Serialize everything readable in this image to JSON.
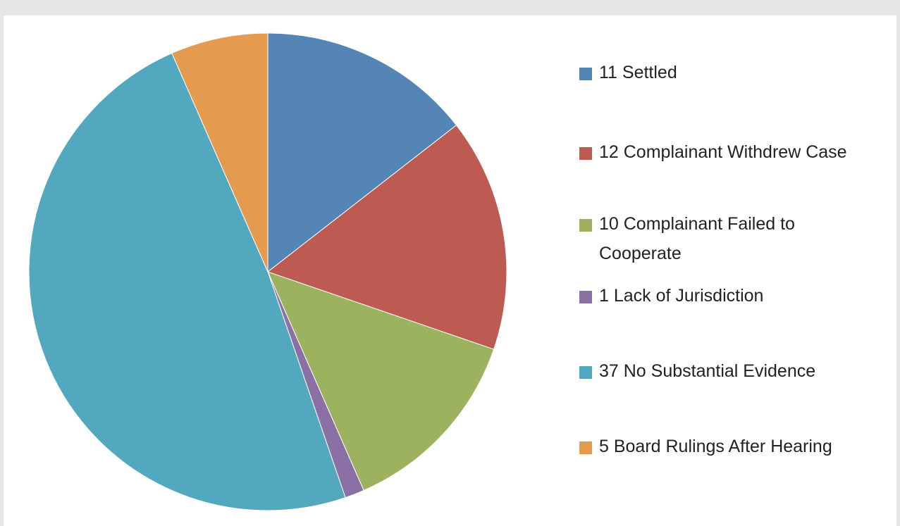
{
  "chart_data": {
    "type": "pie",
    "categories": [
      "11 Settled",
      "12 Complainant Withdrew Case",
      "10 Complainant Failed to Cooperate",
      "1 Lack of Jurisdiction",
      "37 No Substantial Evidence",
      "5 Board Rulings After Hearing"
    ],
    "values": [
      11,
      12,
      10,
      1,
      37,
      5
    ],
    "colors": [
      "#5585b5",
      "#bd5b52",
      "#9db25e",
      "#8a70a4",
      "#52a8bf",
      "#e49a4f"
    ],
    "legend": "right"
  }
}
